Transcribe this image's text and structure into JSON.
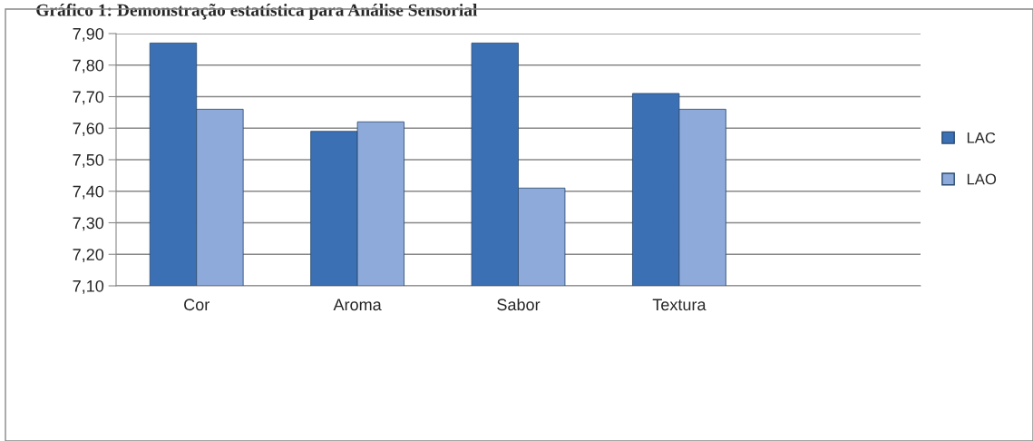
{
  "chart_data": {
    "type": "bar",
    "title": "Gráfico 1: Demonstração estatística para Análise Sensorial",
    "categories": [
      "Cor",
      "Aroma",
      "Sabor",
      "Textura",
      null
    ],
    "series": [
      {
        "name": "LAC",
        "color": "#3b70b5",
        "values": [
          7.87,
          7.59,
          7.87,
          7.71,
          null
        ]
      },
      {
        "name": "LAO",
        "color": "#8eaadb",
        "values": [
          7.66,
          7.62,
          7.41,
          7.66,
          null
        ]
      }
    ],
    "ylim": [
      7.1,
      7.9
    ],
    "yticks": [
      {
        "value": 7.1,
        "label": "7,10"
      },
      {
        "value": 7.2,
        "label": "7,20"
      },
      {
        "value": 7.3,
        "label": "7,30"
      },
      {
        "value": 7.4,
        "label": "7,40"
      },
      {
        "value": 7.5,
        "label": "7,50"
      },
      {
        "value": 7.6,
        "label": "7,60"
      },
      {
        "value": 7.7,
        "label": "7,70"
      },
      {
        "value": 7.8,
        "label": "7,80"
      },
      {
        "value": 7.9,
        "label": "7,90"
      }
    ],
    "grid": "y",
    "legend": "right"
  }
}
